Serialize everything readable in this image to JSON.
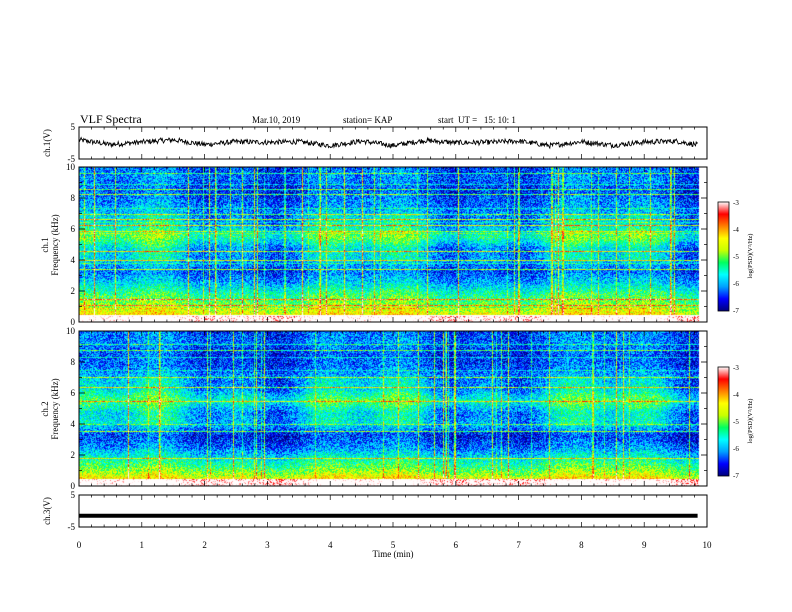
{
  "header": {
    "title": "VLF Spectra",
    "date": "Mar.10, 2019",
    "station": "station= KAP",
    "start": "start  UT =   15: 10: 1"
  },
  "colors": {
    "colormap": [
      "#00007a",
      "#0000ff",
      "#00a0ff",
      "#00ffff",
      "#00ff60",
      "#c8ff00",
      "#ffff00",
      "#ff8000",
      "#ff0000",
      "#ffffff"
    ],
    "background": "#ffffff",
    "axis": "#000000"
  },
  "chart_data": [
    {
      "type": "line",
      "panel": "ch1-waveform",
      "ylabel": "ch.1(V)",
      "ylim": [
        -5,
        5
      ],
      "yticks": [
        "5",
        "-5"
      ],
      "xlim": [
        0,
        10
      ],
      "x": [
        0,
        0.5,
        1,
        1.5,
        2,
        2.5,
        3,
        3.5,
        4,
        4.5,
        5,
        5.5,
        6,
        6.5,
        7,
        7.5,
        8,
        8.5,
        9,
        9.5,
        9.85
      ],
      "y": [
        1.0,
        -0.5,
        0.3,
        1.0,
        -0.5,
        0.4,
        0.2,
        0.4,
        -0.8,
        0.6,
        -0.8,
        0.8,
        0.1,
        0.2,
        0.6,
        -0.8,
        0.4,
        -0.7,
        0.3,
        0.6,
        -0.6
      ]
    },
    {
      "type": "heatmap",
      "panel": "ch1-spectrogram",
      "ylabel": "ch.1",
      "ylabel2": "Frequency (kHz)",
      "ylim": [
        0,
        10
      ],
      "yticks": [
        "0",
        "2",
        "4",
        "6",
        "8",
        "10"
      ],
      "xlim": [
        0,
        10
      ],
      "zlim": [
        -7,
        -3
      ],
      "colorbar_label": "log(PSD)(V²/Hz)",
      "colorbar_ticks": [
        "-3",
        "-4",
        "-5",
        "-6",
        "-7"
      ],
      "freq_khz": [
        0.25,
        1.0,
        1.75,
        2.5,
        3.25,
        4.0,
        4.75,
        5.5,
        6.25,
        7.0,
        7.75,
        8.5,
        9.25,
        10.0
      ],
      "mean_log_psd": [
        -4.2,
        -4.9,
        -5.3,
        -5.9,
        -6.3,
        -5.9,
        -5.9,
        -5.2,
        -5.8,
        -6.0,
        -6.2,
        -6.4,
        -6.2,
        -6.3
      ]
    },
    {
      "type": "heatmap",
      "panel": "ch2-spectrogram",
      "ylabel": "ch.2",
      "ylabel2": "Frequency (kHz)",
      "ylim": [
        0,
        10
      ],
      "yticks": [
        "0",
        "2",
        "4",
        "6",
        "8",
        "10"
      ],
      "xlim": [
        0,
        10
      ],
      "zlim": [
        -7,
        -3
      ],
      "colorbar_label": "log(PSD)(V²/Hz)",
      "colorbar_ticks": [
        "-3",
        "-4",
        "-5",
        "-6",
        "-7"
      ],
      "freq_khz": [
        0.25,
        1.0,
        1.75,
        2.5,
        3.25,
        4.0,
        4.75,
        5.5,
        6.25,
        7.0,
        7.75,
        8.5,
        9.25,
        10.0
      ],
      "mean_log_psd": [
        -4.2,
        -5.0,
        -5.6,
        -6.2,
        -6.5,
        -5.8,
        -5.9,
        -5.3,
        -5.9,
        -6.0,
        -6.3,
        -6.4,
        -6.2,
        -6.3
      ]
    },
    {
      "type": "line",
      "panel": "ch3-waveform",
      "ylabel": "ch.3(V)",
      "ylim": [
        -5,
        5
      ],
      "yticks": [
        "5",
        "-5"
      ],
      "xlim": [
        0,
        10
      ],
      "x": [
        0,
        9.85
      ],
      "y": [
        -1.5,
        -1.5
      ]
    }
  ],
  "xaxis": {
    "label": "Time (min)",
    "ticks": [
      "0",
      "1",
      "2",
      "3",
      "4",
      "5",
      "6",
      "7",
      "8",
      "9",
      "10"
    ]
  }
}
